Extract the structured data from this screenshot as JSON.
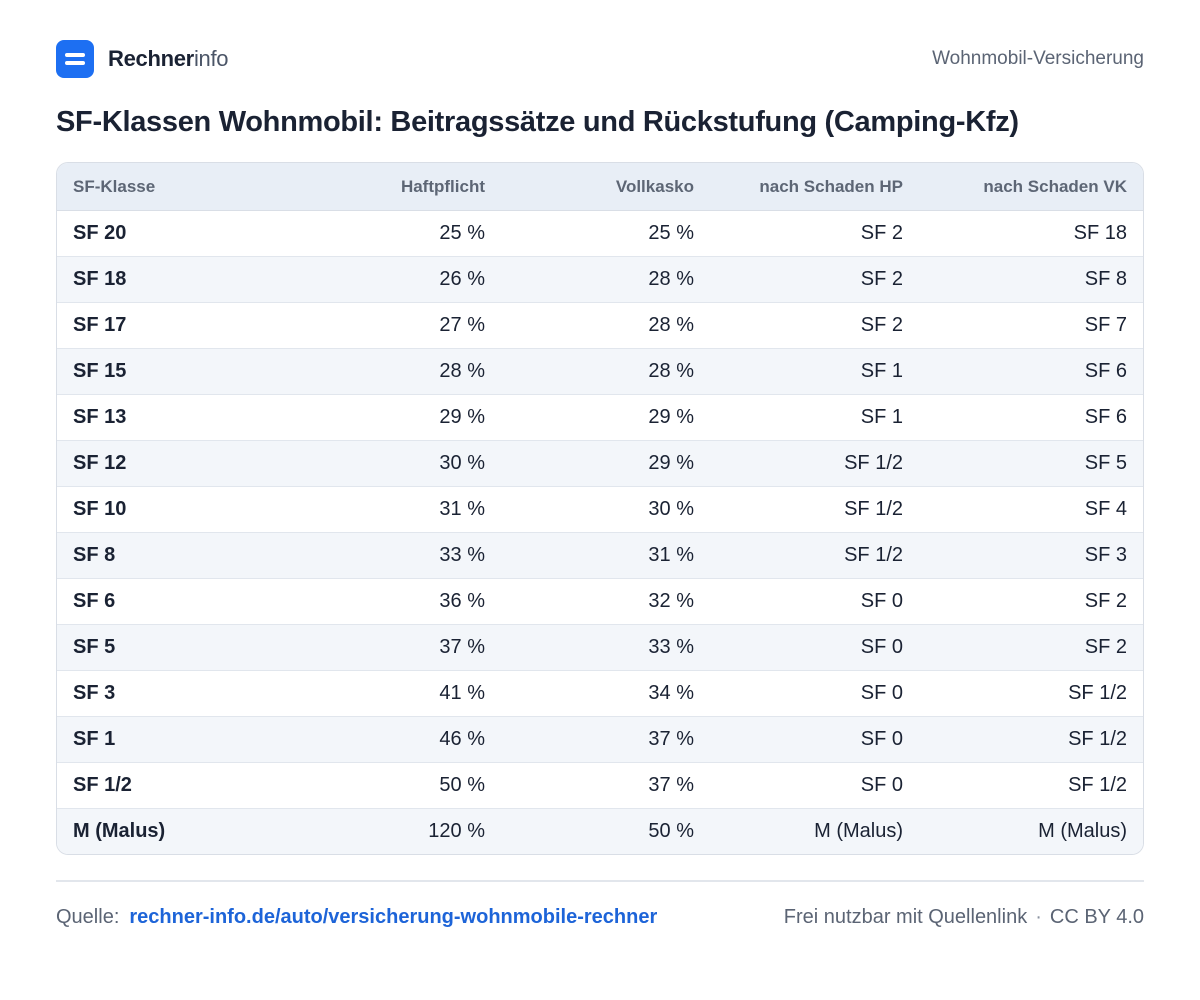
{
  "header": {
    "brand_bold": "Rechner",
    "brand_light": "info",
    "logo_icon": "equals-icon",
    "category": "Wohnmobil-Versicherung"
  },
  "title": "SF-Klassen Wohnmobil: Beitragssätze und Rückstufung (Camping-Kfz)",
  "table": {
    "columns": [
      "SF-Klasse",
      "Haftpflicht",
      "Vollkasko",
      "nach Schaden HP",
      "nach Schaden VK"
    ],
    "rows": [
      [
        "SF 20",
        "25 %",
        "25 %",
        "SF 2",
        "SF 18"
      ],
      [
        "SF 18",
        "26 %",
        "28 %",
        "SF 2",
        "SF 8"
      ],
      [
        "SF 17",
        "27 %",
        "28 %",
        "SF 2",
        "SF 7"
      ],
      [
        "SF 15",
        "28 %",
        "28 %",
        "SF 1",
        "SF 6"
      ],
      [
        "SF 13",
        "29 %",
        "29 %",
        "SF 1",
        "SF 6"
      ],
      [
        "SF 12",
        "30 %",
        "29 %",
        "SF 1/2",
        "SF 5"
      ],
      [
        "SF 10",
        "31 %",
        "30 %",
        "SF 1/2",
        "SF 4"
      ],
      [
        "SF 8",
        "33 %",
        "31 %",
        "SF 1/2",
        "SF 3"
      ],
      [
        "SF 6",
        "36 %",
        "32 %",
        "SF 0",
        "SF 2"
      ],
      [
        "SF 5",
        "37 %",
        "33 %",
        "SF 0",
        "SF 2"
      ],
      [
        "SF 3",
        "41 %",
        "34 %",
        "SF 0",
        "SF 1/2"
      ],
      [
        "SF 1",
        "46 %",
        "37 %",
        "SF 0",
        "SF 1/2"
      ],
      [
        "SF 1/2",
        "50 %",
        "37 %",
        "SF 0",
        "SF 1/2"
      ],
      [
        "M (Malus)",
        "120 %",
        "50 %",
        "M (Malus)",
        "M (Malus)"
      ]
    ]
  },
  "footer": {
    "source_label": "Quelle:",
    "source_link": "rechner-info.de/auto/versicherung-wohnmobile-rechner",
    "license_text": "Frei nutzbar mit Quellenlink",
    "separator": "·",
    "license": "CC BY 4.0"
  }
}
